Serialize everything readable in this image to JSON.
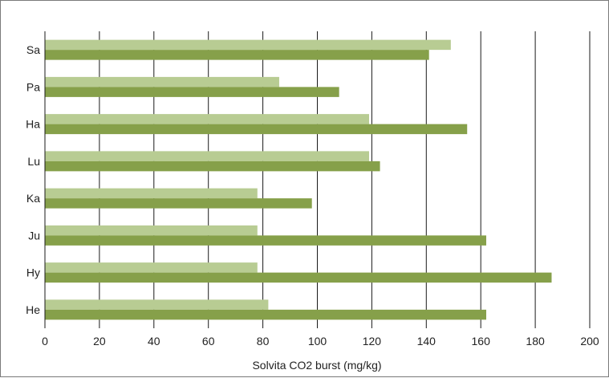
{
  "chart_data": {
    "type": "bar",
    "orientation": "horizontal",
    "categories": [
      "Sa",
      "Pa",
      "Ha",
      "Lu",
      "Ka",
      "Ju",
      "Hy",
      "He"
    ],
    "series": [
      {
        "color": "#b8cc93",
        "values": [
          149,
          86,
          119,
          119,
          78,
          78,
          78,
          82
        ]
      },
      {
        "color": "#86a04a",
        "values": [
          141,
          108,
          155,
          123,
          98,
          162,
          186,
          162
        ]
      }
    ],
    "xlabel": "Solvita CO2 burst (mg/kg)",
    "ylabel": "",
    "xlim": [
      0,
      200
    ],
    "xticks": [
      0,
      20,
      40,
      60,
      80,
      100,
      120,
      140,
      160,
      180,
      200
    ],
    "tick_labels": [
      "0",
      "20",
      "40",
      "60",
      "80",
      "100",
      "120",
      "140",
      "160",
      "180",
      "200"
    ],
    "grid": "vertical",
    "legend": "none"
  }
}
